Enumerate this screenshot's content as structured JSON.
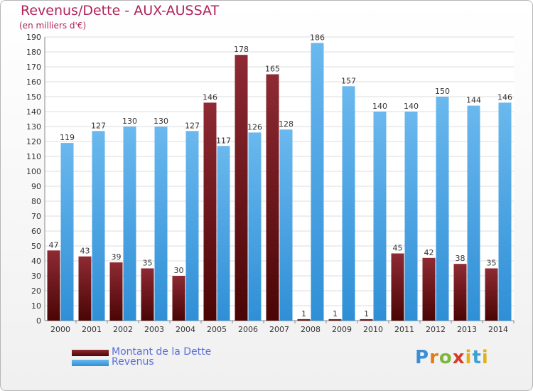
{
  "header": {
    "title": "Revenus/Dette - AUX-AUSSAT",
    "subtitle": "(en milliers d'€)"
  },
  "legend": {
    "debt_label": "Montant de la Dette",
    "revenue_label": "Revenus"
  },
  "logo": {
    "text": "Proxiti"
  },
  "colors": {
    "debt_top": "#8e2a33",
    "debt_bottom": "#4a0505",
    "revenue_top": "#6ab8ee",
    "revenue_bottom": "#2f8fd6",
    "title": "#b0245a",
    "legend_text": "#5a6fd6"
  },
  "chart_data": {
    "type": "bar",
    "title": "Revenus/Dette - AUX-AUSSAT",
    "subtitle": "(en milliers d'€)",
    "categories": [
      "2000",
      "2001",
      "2002",
      "2003",
      "2004",
      "2005",
      "2006",
      "2007",
      "2008",
      "2009",
      "2010",
      "2011",
      "2012",
      "2013",
      "2014"
    ],
    "series": [
      {
        "name": "Montant de la Dette",
        "values": [
          47,
          43,
          39,
          35,
          30,
          146,
          178,
          165,
          1,
          1,
          1,
          45,
          42,
          38,
          35
        ]
      },
      {
        "name": "Revenus",
        "values": [
          119,
          127,
          130,
          130,
          127,
          117,
          126,
          128,
          186,
          157,
          140,
          140,
          150,
          144,
          146
        ]
      }
    ],
    "ylim": [
      0,
      190
    ],
    "yticks": [
      0,
      10,
      20,
      30,
      40,
      50,
      60,
      70,
      80,
      90,
      100,
      110,
      120,
      130,
      140,
      150,
      160,
      170,
      180,
      190
    ],
    "grid": true,
    "legend_position": "bottom-left"
  }
}
